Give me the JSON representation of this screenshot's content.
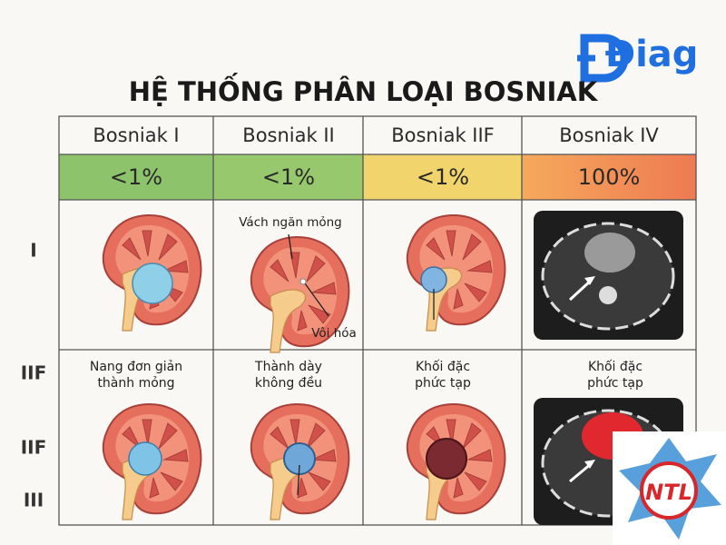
{
  "logo": "Điag",
  "title": "HỆ THỐNG PHÂN LOẠI BOSNIAK",
  "table": {
    "columns": [
      "Bosniak I",
      "Bosniak II",
      "Bosniak IIF",
      "Bosniak IV"
    ],
    "risk": [
      "<1%",
      "<1%",
      "<1%",
      "100%"
    ],
    "row_labels": [
      "I",
      "IIF",
      "IIF",
      "III"
    ],
    "annotations": [
      "Vách ngăn mỏng",
      "Vôi hóa"
    ],
    "captions": [
      [
        "Nang đơn giản",
        "thành mỏng"
      ],
      [
        "Thành dày",
        "không đều"
      ],
      [
        "Khối đặc",
        "phức tạp"
      ],
      [
        "Khối đặc",
        "phức tạp"
      ]
    ]
  },
  "badge": "NTL"
}
